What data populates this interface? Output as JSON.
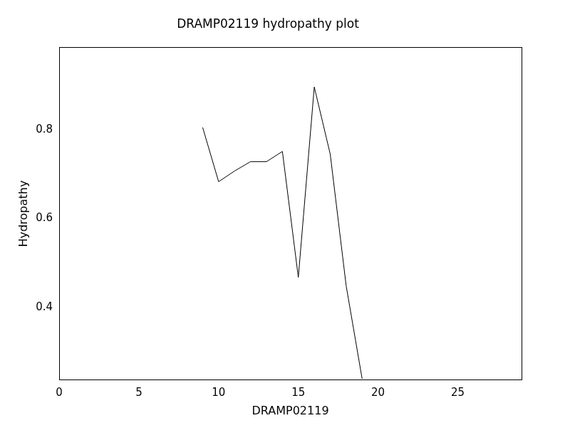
{
  "chart_data": {
    "type": "line",
    "title": "DRAMP02119 hydropathy plot",
    "x_label": "DRAMP02119",
    "y_label": "Hydropathy",
    "x": [
      9,
      10,
      11,
      12,
      13,
      14,
      15,
      16,
      17,
      18,
      19
    ],
    "values": [
      0.805,
      0.683,
      0.707,
      0.728,
      0.728,
      0.751,
      0.468,
      0.896,
      0.745,
      0.449,
      0.24
    ],
    "color": "#000000",
    "xlim": [
      0,
      29
    ],
    "xticks": [
      0,
      5,
      10,
      15,
      20,
      25
    ],
    "ylim": [
      0.237,
      0.985
    ],
    "yticks": [
      0.4,
      0.6,
      0.8
    ],
    "grid": false
  }
}
